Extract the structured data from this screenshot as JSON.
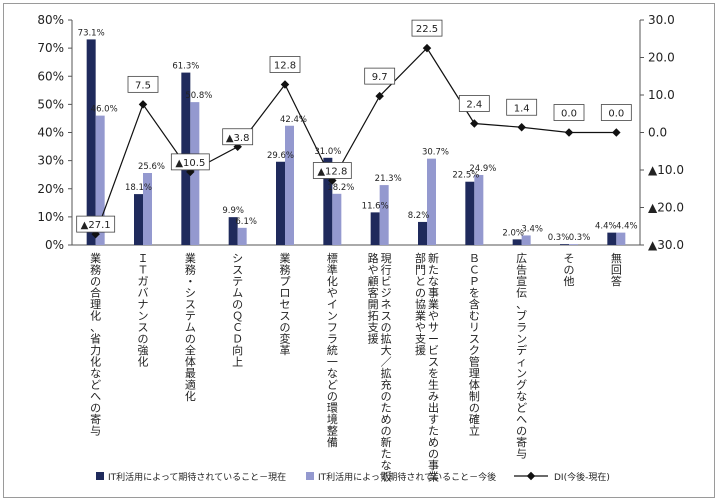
{
  "chart_data": {
    "type": "bar",
    "categories": [
      "業務の合理化、省力化などへの寄与",
      "ＩＴガバナンスの強化",
      "業務・システムの全体最適化",
      "システムのＱＣＤ向上",
      "業務プロセスの変革",
      "標準化やインフラ統一などの環境整備",
      "現行ビジネスの拡大／拡充のための新たな販路や顧客開拓支援",
      "新たな事業やサービスを生み出すための事業部門との協業や支援",
      "ＢＣＰを含むリスク管理体制の確立",
      "広告宣伝、ブランディングなどへの寄与",
      "その他",
      "無回答"
    ],
    "series": [
      {
        "name": "IT利活用によって期待されていること－現在",
        "values": [
          73.1,
          18.1,
          61.3,
          9.9,
          29.6,
          31.0,
          11.6,
          8.2,
          22.5,
          2.0,
          0.3,
          4.4
        ],
        "labels": [
          "73.1%",
          "18.1%",
          "61.3%",
          "9.9%",
          "29.6%",
          "31.0%",
          "11.6%",
          "8.2%",
          "22.5%",
          "2.0%",
          "0.3%",
          "4.4%"
        ],
        "color": "#1f2a5c",
        "axis": "left"
      },
      {
        "name": "IT利活用によって期待されていること－今後",
        "values": [
          46.0,
          25.6,
          50.8,
          6.1,
          42.4,
          18.2,
          21.3,
          30.7,
          24.9,
          3.4,
          0.3,
          4.4
        ],
        "labels": [
          "46.0%",
          "25.6%",
          "50.8%",
          "6.1%",
          "42.4%",
          "18.2%",
          "21.3%",
          "30.7%",
          "24.9%",
          "3.4%",
          "0.3%",
          "4.4%"
        ],
        "color": "#9499cf",
        "axis": "left"
      },
      {
        "name": "DI(今後-現在)",
        "type": "line",
        "values": [
          -27.1,
          7.5,
          -10.5,
          -3.8,
          12.8,
          -12.8,
          9.7,
          22.5,
          2.4,
          1.4,
          0.0,
          0.0
        ],
        "labels": [
          "▲27.1",
          "7.5",
          "▲10.5",
          "▲3.8",
          "12.8",
          "▲12.8",
          "9.7",
          "22.5",
          "2.4",
          "1.4",
          "0.0",
          "0.0"
        ],
        "color": "#111111",
        "axis": "right"
      }
    ],
    "y_left": {
      "ylim": [
        0,
        80
      ],
      "ticks": [
        "0%",
        "10%",
        "20%",
        "30%",
        "40%",
        "50%",
        "60%",
        "70%",
        "80%"
      ]
    },
    "y_right": {
      "ylim": [
        -30,
        30
      ],
      "ticks": [
        "▲30.0",
        "▲20.0",
        "▲10.0",
        "0.0",
        "10.0",
        "20.0",
        "30.0"
      ]
    },
    "legend_position": "bottom",
    "grid": false
  }
}
